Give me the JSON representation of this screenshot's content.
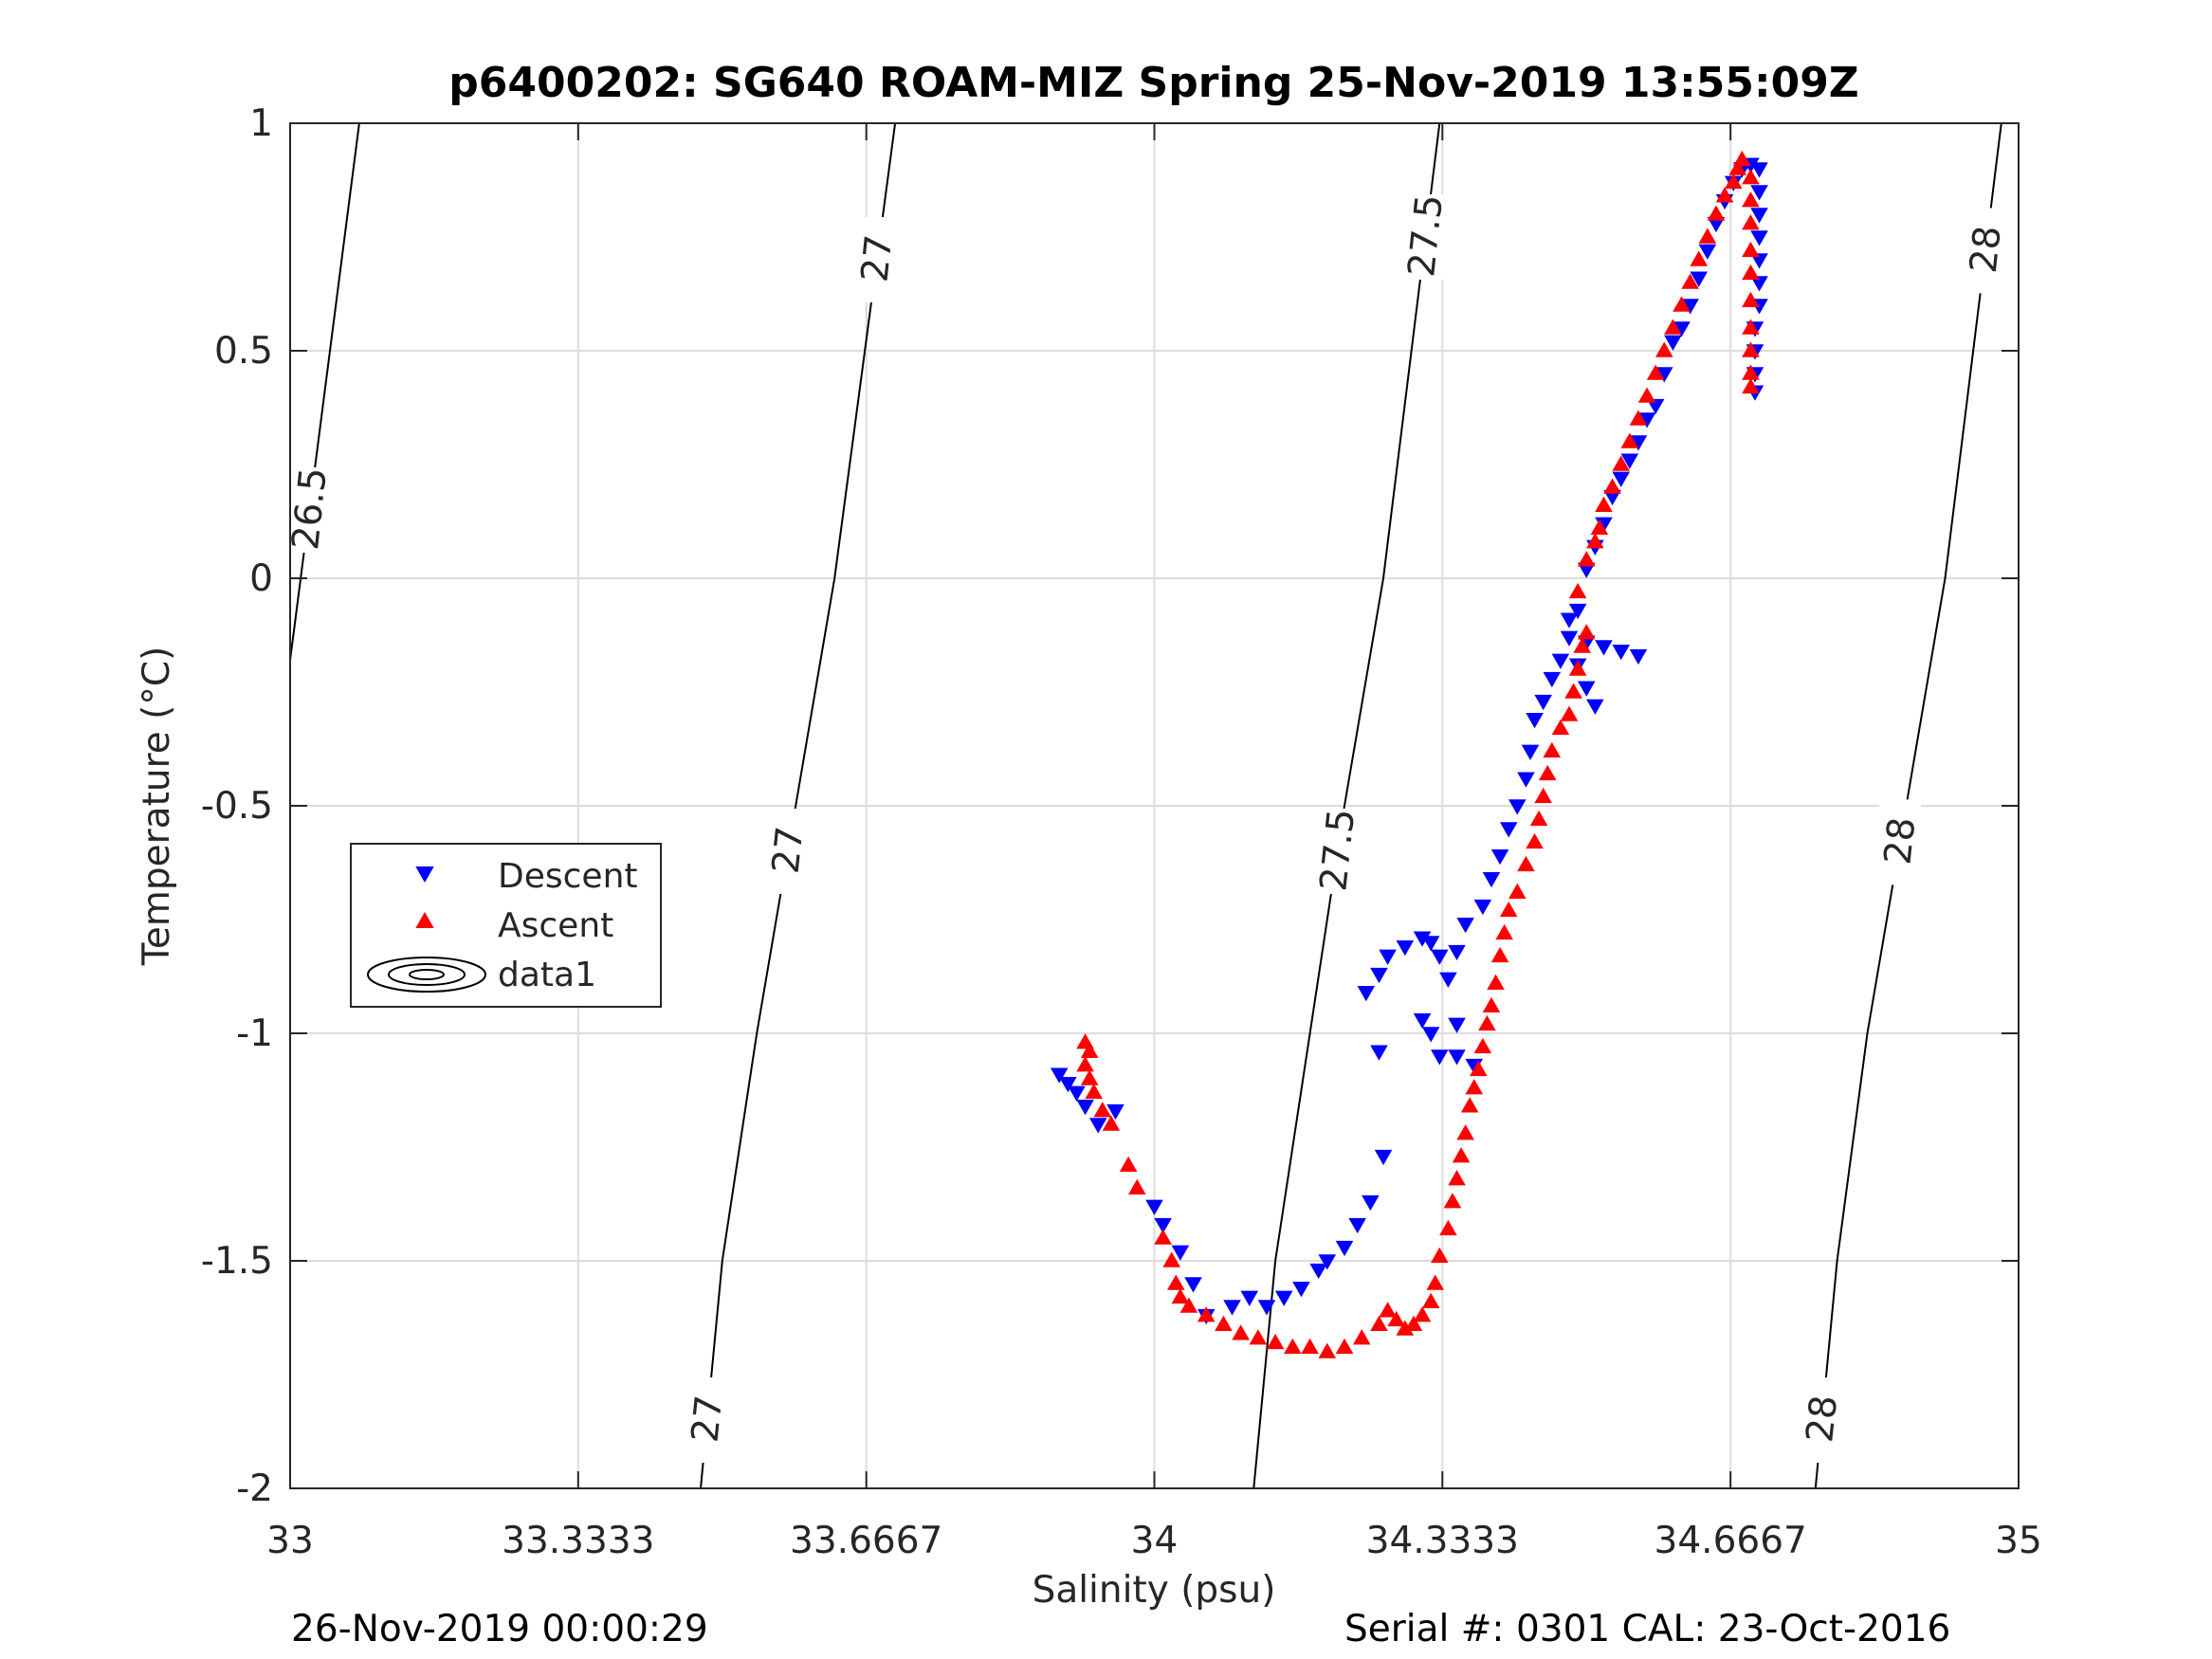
{
  "chart_data": {
    "type": "scatter",
    "title": "p6400202: SG640 ROAM-MIZ Spring 25-Nov-2019 13:55:09Z",
    "xlabel": "Salinity (psu)",
    "ylabel": "Temperature (°C)",
    "xlim": [
      33,
      35
    ],
    "ylim": [
      -2,
      1
    ],
    "x_ticks": [
      "33",
      "33.3333",
      "33.6667",
      "34",
      "34.3333",
      "34.6667",
      "35"
    ],
    "y_ticks": [
      "1",
      "0.5",
      "0",
      "-0.5",
      "-1",
      "-1.5",
      "-2"
    ],
    "grid": true,
    "legend_position": "left",
    "legend": [
      "Descent",
      "Ascent",
      "data1"
    ],
    "colors": {
      "descent": "#0000ff",
      "ascent": "#ff0000",
      "contour": "#000000",
      "grid": "#dcdcdc"
    },
    "contour_labels": [
      "26.5",
      "27",
      "27",
      "27",
      "27.5",
      "27.5",
      "28",
      "28",
      "28"
    ],
    "density_contours": [
      {
        "level": 26.5,
        "points": [
          [
            33.08,
            1.0
          ],
          [
            33.0,
            -0.18
          ]
        ]
      },
      {
        "level": 27,
        "points": [
          [
            33.7,
            1.0
          ],
          [
            33.63,
            0.0
          ],
          [
            33.585,
            -0.5
          ],
          [
            33.54,
            -1.0
          ],
          [
            33.5,
            -1.5
          ],
          [
            33.475,
            -2.0
          ]
        ]
      },
      {
        "level": 27.5,
        "points": [
          [
            34.33,
            1.0
          ],
          [
            34.265,
            0.0
          ],
          [
            34.22,
            -0.5
          ],
          [
            34.18,
            -1.0
          ],
          [
            34.14,
            -1.5
          ],
          [
            34.115,
            -2.0
          ]
        ]
      },
      {
        "level": 28,
        "points": [
          [
            34.98,
            1.0
          ],
          [
            34.915,
            0.0
          ],
          [
            34.87,
            -0.5
          ],
          [
            34.825,
            -1.0
          ],
          [
            34.79,
            -1.5
          ],
          [
            34.765,
            -2.0
          ]
        ]
      }
    ],
    "series": [
      {
        "name": "Descent",
        "marker": "triangle-down",
        "points": [
          [
            33.89,
            -1.09
          ],
          [
            33.9,
            -1.11
          ],
          [
            33.91,
            -1.13
          ],
          [
            33.92,
            -1.16
          ],
          [
            33.935,
            -1.2
          ],
          [
            33.955,
            -1.17
          ],
          [
            34.0,
            -1.38
          ],
          [
            34.01,
            -1.42
          ],
          [
            34.03,
            -1.48
          ],
          [
            34.045,
            -1.55
          ],
          [
            34.06,
            -1.62
          ],
          [
            34.09,
            -1.6
          ],
          [
            34.11,
            -1.58
          ],
          [
            34.13,
            -1.6
          ],
          [
            34.15,
            -1.58
          ],
          [
            34.17,
            -1.56
          ],
          [
            34.19,
            -1.52
          ],
          [
            34.2,
            -1.5
          ],
          [
            34.22,
            -1.47
          ],
          [
            34.235,
            -1.42
          ],
          [
            34.25,
            -1.37
          ],
          [
            34.265,
            -1.27
          ],
          [
            34.245,
            -0.91
          ],
          [
            34.26,
            -0.87
          ],
          [
            34.27,
            -0.83
          ],
          [
            34.29,
            -0.81
          ],
          [
            34.31,
            -0.79
          ],
          [
            34.32,
            -0.8
          ],
          [
            34.33,
            -0.83
          ],
          [
            34.26,
            -1.04
          ],
          [
            34.31,
            -0.97
          ],
          [
            34.32,
            -1.0
          ],
          [
            34.33,
            -1.05
          ],
          [
            34.35,
            -1.05
          ],
          [
            34.37,
            -1.07
          ],
          [
            34.35,
            -0.98
          ],
          [
            34.34,
            -0.88
          ],
          [
            34.35,
            -0.82
          ],
          [
            34.36,
            -0.76
          ],
          [
            34.38,
            -0.72
          ],
          [
            34.39,
            -0.66
          ],
          [
            34.4,
            -0.61
          ],
          [
            34.41,
            -0.55
          ],
          [
            34.42,
            -0.5
          ],
          [
            34.43,
            -0.44
          ],
          [
            34.435,
            -0.38
          ],
          [
            34.44,
            -0.31
          ],
          [
            34.45,
            -0.27
          ],
          [
            34.46,
            -0.22
          ],
          [
            34.47,
            -0.18
          ],
          [
            34.48,
            -0.13
          ],
          [
            34.5,
            -0.14
          ],
          [
            34.52,
            -0.15
          ],
          [
            34.54,
            -0.16
          ],
          [
            34.56,
            -0.17
          ],
          [
            34.49,
            -0.19
          ],
          [
            34.5,
            -0.24
          ],
          [
            34.51,
            -0.28
          ],
          [
            34.48,
            -0.09
          ],
          [
            34.49,
            -0.07
          ],
          [
            34.5,
            0.02
          ],
          [
            34.51,
            0.07
          ],
          [
            34.52,
            0.12
          ],
          [
            34.53,
            0.18
          ],
          [
            34.54,
            0.22
          ],
          [
            34.55,
            0.26
          ],
          [
            34.56,
            0.3
          ],
          [
            34.57,
            0.35
          ],
          [
            34.58,
            0.38
          ],
          [
            34.59,
            0.45
          ],
          [
            34.6,
            0.52
          ],
          [
            34.61,
            0.55
          ],
          [
            34.62,
            0.6
          ],
          [
            34.63,
            0.66
          ],
          [
            34.64,
            0.72
          ],
          [
            34.65,
            0.78
          ],
          [
            34.66,
            0.83
          ],
          [
            34.67,
            0.87
          ],
          [
            34.68,
            0.9
          ],
          [
            34.69,
            0.91
          ],
          [
            34.7,
            0.9
          ],
          [
            34.7,
            0.85
          ],
          [
            34.7,
            0.8
          ],
          [
            34.7,
            0.75
          ],
          [
            34.7,
            0.7
          ],
          [
            34.7,
            0.65
          ],
          [
            34.7,
            0.6
          ],
          [
            34.695,
            0.55
          ],
          [
            34.695,
            0.5
          ],
          [
            34.695,
            0.45
          ],
          [
            34.695,
            0.41
          ]
        ]
      },
      {
        "name": "Ascent",
        "marker": "triangle-up",
        "points": [
          [
            33.92,
            -1.02
          ],
          [
            33.925,
            -1.04
          ],
          [
            33.92,
            -1.07
          ],
          [
            33.925,
            -1.1
          ],
          [
            33.93,
            -1.13
          ],
          [
            33.94,
            -1.17
          ],
          [
            33.95,
            -1.2
          ],
          [
            33.97,
            -1.29
          ],
          [
            33.98,
            -1.34
          ],
          [
            34.01,
            -1.45
          ],
          [
            34.02,
            -1.5
          ],
          [
            34.025,
            -1.55
          ],
          [
            34.03,
            -1.58
          ],
          [
            34.04,
            -1.6
          ],
          [
            34.06,
            -1.62
          ],
          [
            34.08,
            -1.64
          ],
          [
            34.1,
            -1.66
          ],
          [
            34.12,
            -1.67
          ],
          [
            34.14,
            -1.68
          ],
          [
            34.16,
            -1.69
          ],
          [
            34.18,
            -1.69
          ],
          [
            34.2,
            -1.7
          ],
          [
            34.22,
            -1.69
          ],
          [
            34.24,
            -1.67
          ],
          [
            34.26,
            -1.64
          ],
          [
            34.27,
            -1.61
          ],
          [
            34.28,
            -1.63
          ],
          [
            34.29,
            -1.65
          ],
          [
            34.3,
            -1.64
          ],
          [
            34.31,
            -1.62
          ],
          [
            34.32,
            -1.59
          ],
          [
            34.325,
            -1.55
          ],
          [
            34.33,
            -1.49
          ],
          [
            34.34,
            -1.43
          ],
          [
            34.345,
            -1.37
          ],
          [
            34.35,
            -1.32
          ],
          [
            34.355,
            -1.27
          ],
          [
            34.36,
            -1.22
          ],
          [
            34.365,
            -1.16
          ],
          [
            34.37,
            -1.12
          ],
          [
            34.375,
            -1.08
          ],
          [
            34.38,
            -1.03
          ],
          [
            34.385,
            -0.98
          ],
          [
            34.39,
            -0.94
          ],
          [
            34.395,
            -0.89
          ],
          [
            34.4,
            -0.83
          ],
          [
            34.405,
            -0.78
          ],
          [
            34.41,
            -0.73
          ],
          [
            34.42,
            -0.69
          ],
          [
            34.43,
            -0.63
          ],
          [
            34.44,
            -0.58
          ],
          [
            34.445,
            -0.53
          ],
          [
            34.45,
            -0.48
          ],
          [
            34.455,
            -0.43
          ],
          [
            34.46,
            -0.38
          ],
          [
            34.47,
            -0.33
          ],
          [
            34.48,
            -0.3
          ],
          [
            34.485,
            -0.25
          ],
          [
            34.49,
            -0.2
          ],
          [
            34.495,
            -0.15
          ],
          [
            34.5,
            -0.12
          ],
          [
            34.49,
            -0.03
          ],
          [
            34.5,
            0.04
          ],
          [
            34.51,
            0.08
          ],
          [
            34.515,
            0.11
          ],
          [
            34.52,
            0.16
          ],
          [
            34.53,
            0.2
          ],
          [
            34.54,
            0.25
          ],
          [
            34.55,
            0.3
          ],
          [
            34.56,
            0.35
          ],
          [
            34.57,
            0.4
          ],
          [
            34.58,
            0.45
          ],
          [
            34.59,
            0.5
          ],
          [
            34.6,
            0.55
          ],
          [
            34.61,
            0.6
          ],
          [
            34.62,
            0.65
          ],
          [
            34.63,
            0.7
          ],
          [
            34.64,
            0.75
          ],
          [
            34.65,
            0.8
          ],
          [
            34.66,
            0.84
          ],
          [
            34.67,
            0.87
          ],
          [
            34.675,
            0.9
          ],
          [
            34.68,
            0.92
          ],
          [
            34.69,
            0.88
          ],
          [
            34.69,
            0.83
          ],
          [
            34.69,
            0.78
          ],
          [
            34.69,
            0.72
          ],
          [
            34.69,
            0.67
          ],
          [
            34.69,
            0.61
          ],
          [
            34.69,
            0.55
          ],
          [
            34.69,
            0.5
          ],
          [
            34.69,
            0.45
          ],
          [
            34.69,
            0.42
          ]
        ]
      }
    ]
  },
  "footer": {
    "date": "26-Nov-2019 00:00:29",
    "serial_cal": "Serial #: 0301  CAL: 23-Oct-2016"
  }
}
